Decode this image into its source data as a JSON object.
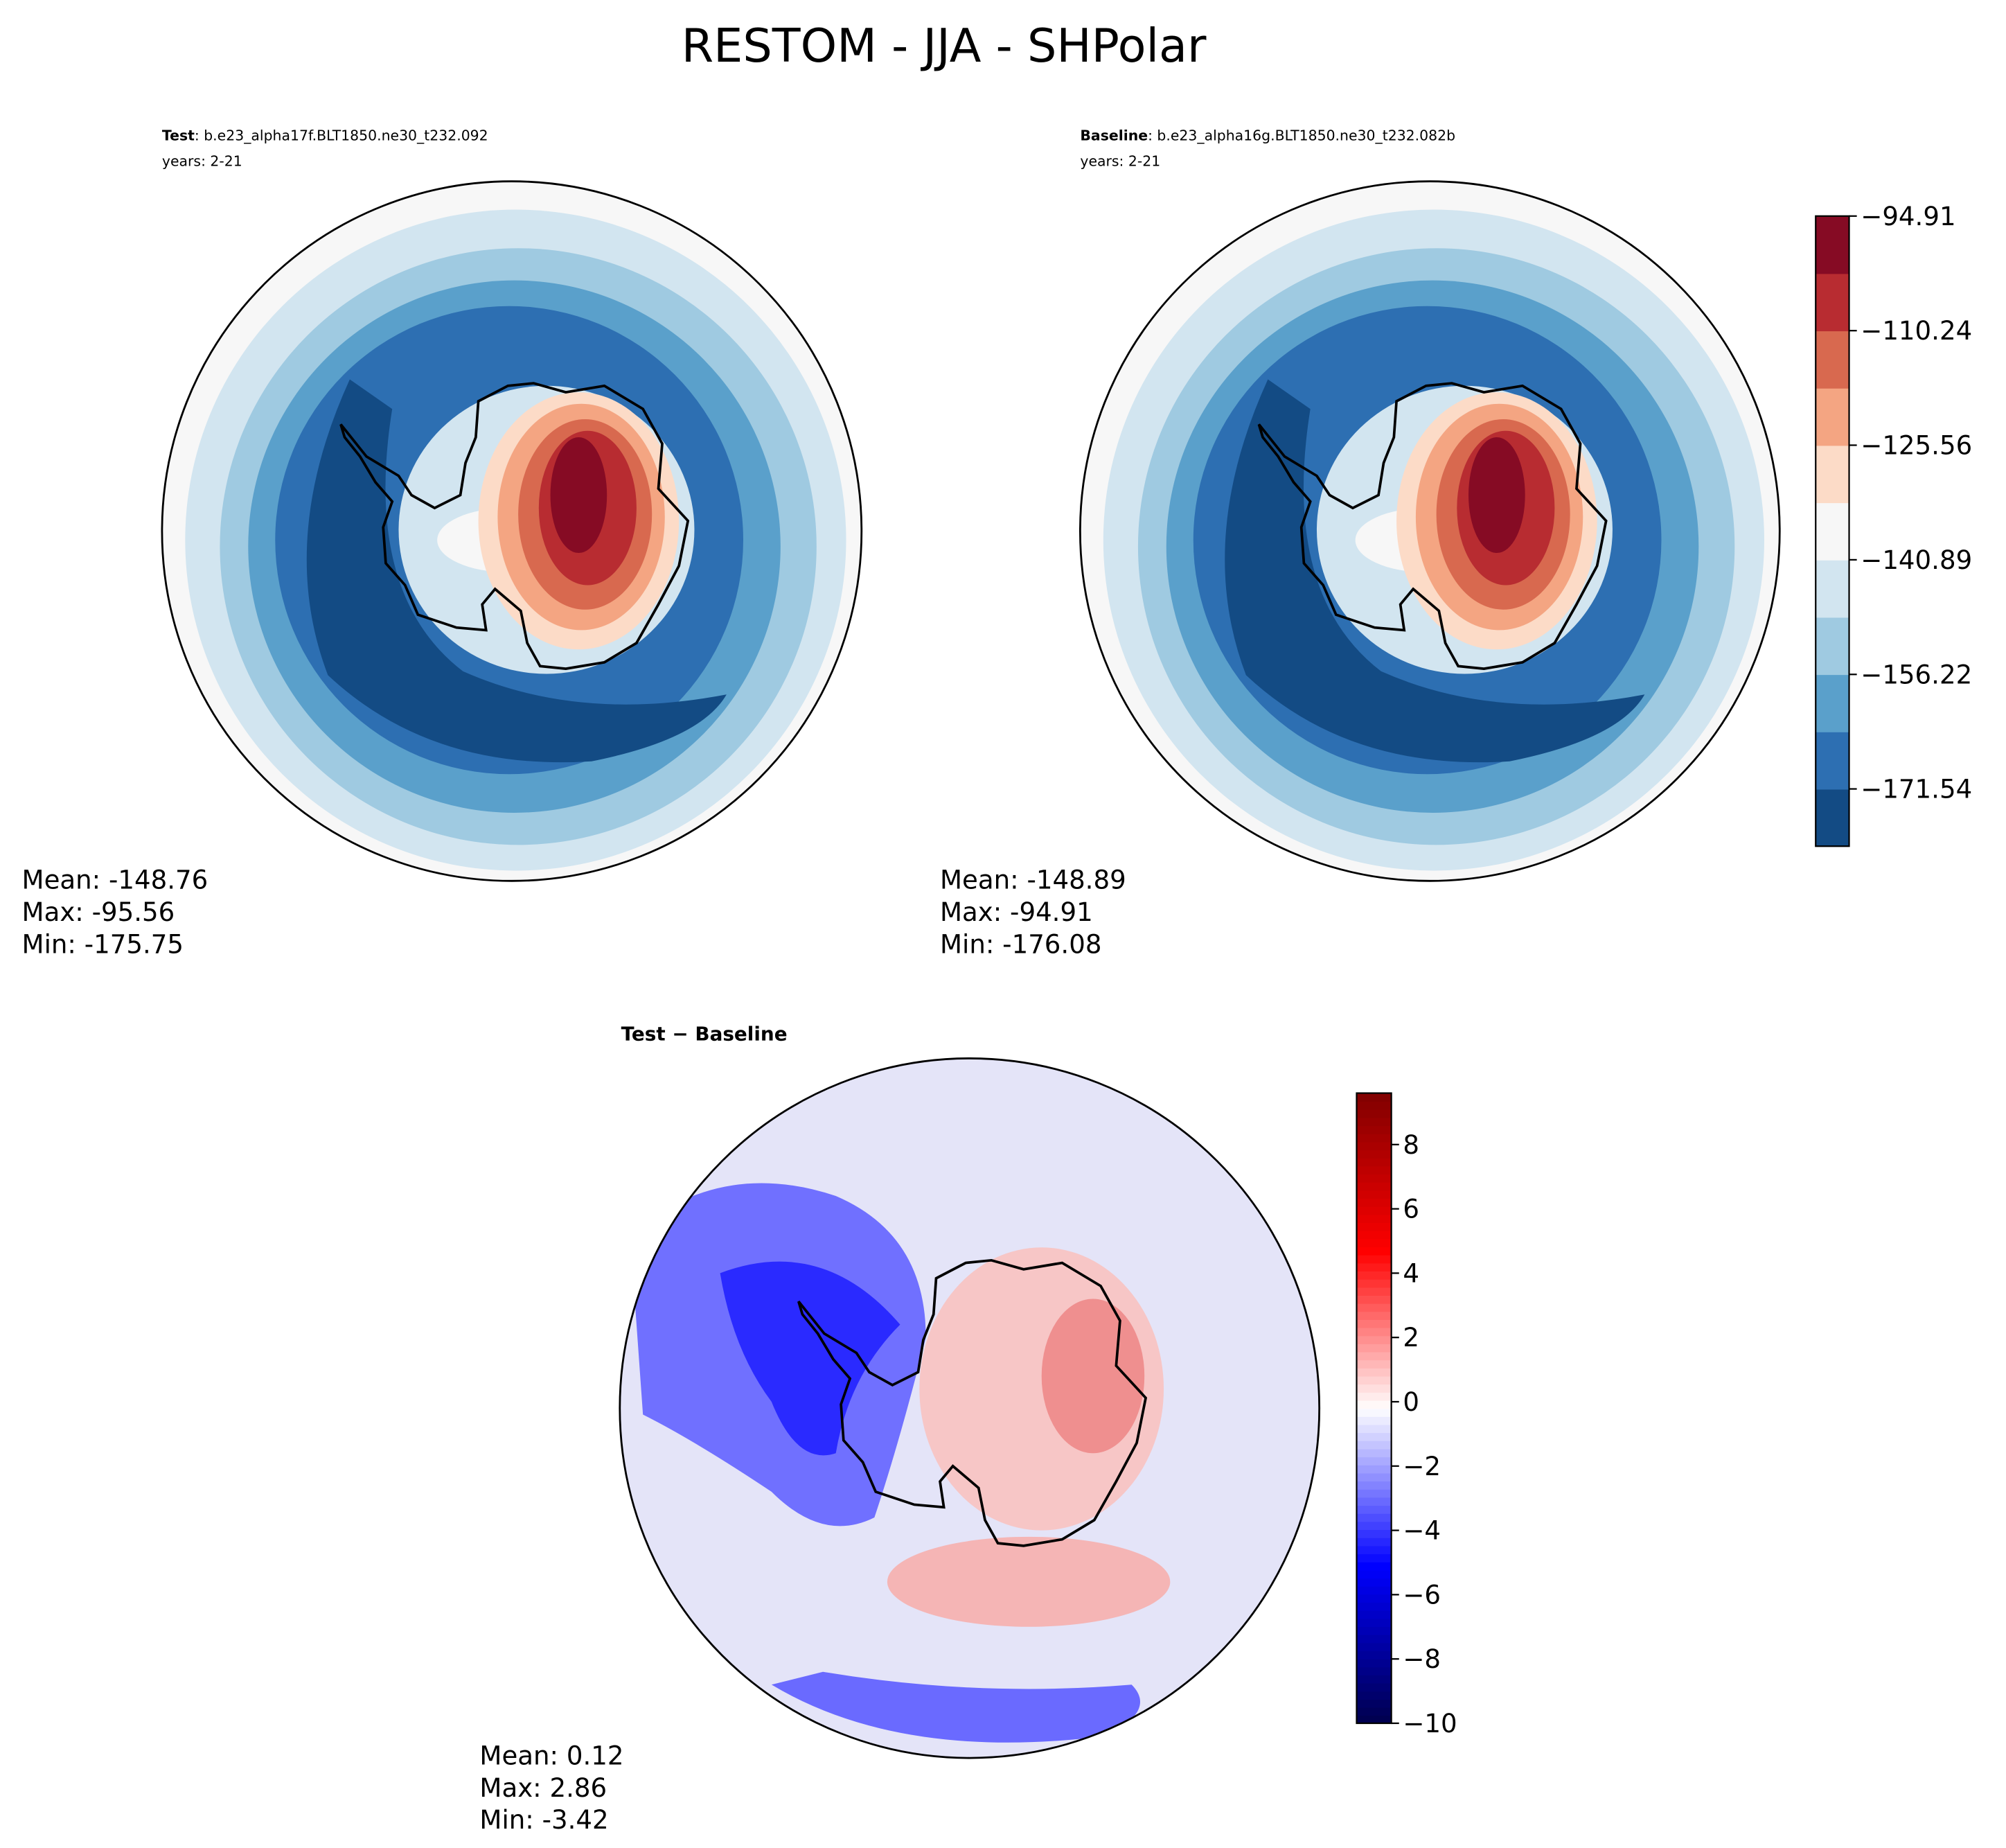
{
  "title": "RESTOM - JJA - SHPolar",
  "chart_data": [
    {
      "type": "contour-map",
      "label": "Test",
      "case": ": b.e23_alpha17f.BLT1850.ne30_t232.092",
      "years": "years: 2-21",
      "stats": [
        "Mean: -148.76",
        "Max: -95.56",
        "Min: -175.75"
      ]
    },
    {
      "type": "contour-map",
      "label": "Baseline",
      "case": ": b.e23_alpha16g.BLT1850.ne30_t232.082b",
      "years": "years: 2-21",
      "stats": [
        "Mean: -148.89",
        "Max: -94.91",
        "Min: -176.08"
      ],
      "colorbar": {
        "ylim": [
          -179.2,
          -94.91
        ],
        "yticks": [
          {
            "value": -94.91,
            "label": "−94.91"
          },
          {
            "value": -110.24,
            "label": "−110.24"
          },
          {
            "value": -125.56,
            "label": "−125.56"
          },
          {
            "value": -140.89,
            "label": "−140.89"
          },
          {
            "value": -156.22,
            "label": "−156.22"
          },
          {
            "value": -171.54,
            "label": "−171.54"
          }
        ],
        "colors": [
          "#134b84",
          "#2d6fb2",
          "#5aa0cb",
          "#9fcae1",
          "#d2e5f0",
          "#f7f7f7",
          "#fcdbc7",
          "#f4a582",
          "#d8694f",
          "#b82c31",
          "#860b24"
        ]
      }
    },
    {
      "type": "contour-map",
      "label": "Test − Baseline",
      "stats": [
        "Mean:  0.12",
        "Max:  2.86",
        "Min: -3.42"
      ],
      "colorbar": {
        "ylim": [
          -10,
          9.6
        ],
        "colormap": "seismic",
        "yticks": [
          {
            "value": -10,
            "label": "−10"
          },
          {
            "value": -8,
            "label": "−8"
          },
          {
            "value": -6,
            "label": "−6"
          },
          {
            "value": -4,
            "label": "−4"
          },
          {
            "value": -2,
            "label": "−2"
          },
          0,
          2,
          4,
          6,
          8
        ]
      }
    }
  ]
}
